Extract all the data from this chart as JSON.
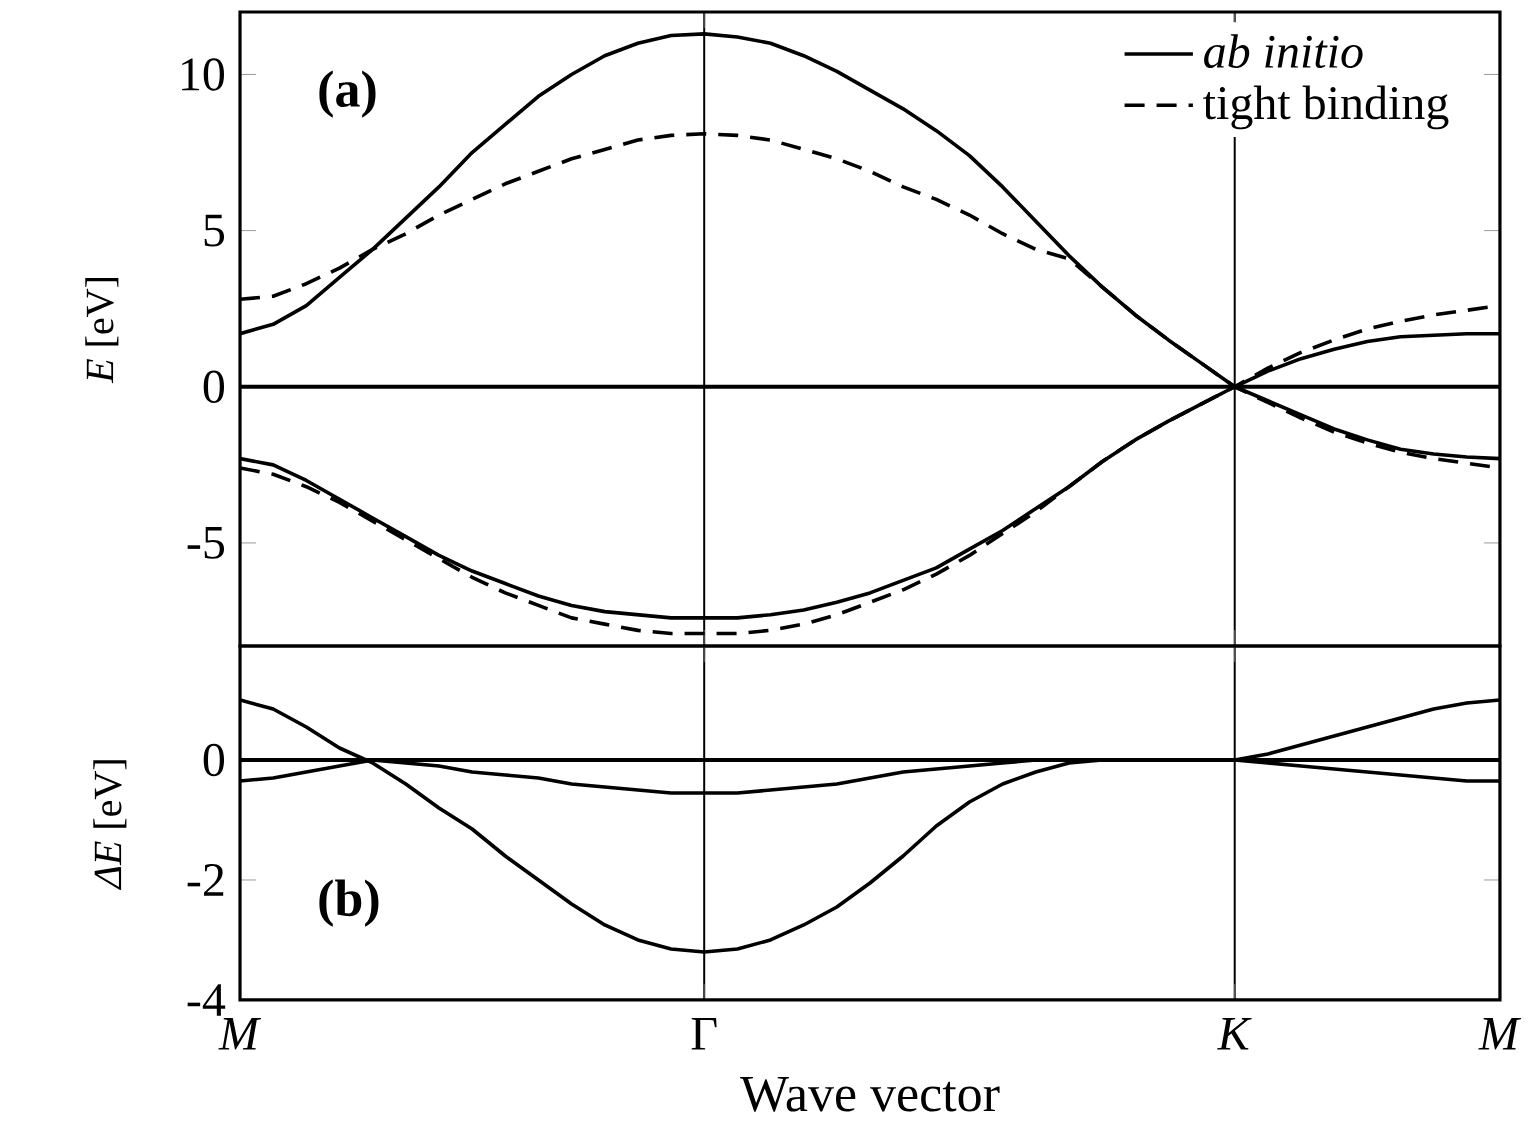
{
  "chart_data": [
    {
      "type": "line",
      "ylabel": "*E*  [eV]",
      "annotations": [
        "(a)"
      ],
      "ylim": [
        -8.3,
        12
      ],
      "categories": [
        null,
        null,
        null,
        null,
        null,
        null,
        null,
        null,
        null,
        null,
        null,
        null,
        null,
        null,
        null,
        null,
        null,
        null,
        null,
        null,
        null,
        null,
        null,
        null,
        null,
        null,
        null,
        null,
        null,
        null,
        null,
        null,
        null,
        null,
        null,
        null,
        null,
        null,
        null
      ],
      "yticks": [
        -5,
        0,
        5,
        10
      ],
      "tick_labels": "y",
      "grid": "x",
      "legend": "top right",
      "ref_lines": [
        {
          "axis": "y",
          "value": 0
        }
      ],
      "series": [
        {
          "name": "*ab initio*",
          "color": "#000000",
          "line_style": "solid",
          "values": [
            1.7,
            2.0,
            2.6,
            3.5,
            4.4,
            5.4,
            6.4,
            7.5,
            8.4,
            9.3,
            10.0,
            10.6,
            11.0,
            11.25,
            11.3,
            11.2,
            11.0,
            10.6,
            10.1,
            9.5,
            8.9,
            8.2,
            7.4,
            6.4,
            5.3,
            4.2,
            3.2,
            2.3,
            1.5,
            0.75,
            0,
            0.5,
            0.9,
            1.2,
            1.45,
            1.6,
            1.65,
            1.7,
            1.7
          ]
        },
        {
          "name": "tight binding",
          "color": "#000000",
          "line_style": "dashed",
          "values": [
            2.8,
            2.9,
            3.3,
            3.8,
            4.4,
            4.9,
            5.5,
            6.0,
            6.5,
            6.9,
            7.3,
            7.6,
            7.9,
            8.05,
            8.1,
            8.05,
            7.9,
            7.6,
            7.3,
            6.9,
            6.4,
            6.0,
            5.5,
            4.9,
            4.4,
            4.1,
            3.2,
            2.3,
            1.5,
            0.75,
            0,
            0.6,
            1.1,
            1.5,
            1.85,
            2.1,
            2.3,
            2.45,
            2.6
          ]
        },
        {
          "color": "#000000",
          "line_style": "solid",
          "values": [
            -2.3,
            -2.5,
            -3.0,
            -3.6,
            -4.2,
            -4.8,
            -5.4,
            -5.9,
            -6.3,
            -6.7,
            -7.0,
            -7.2,
            -7.3,
            -7.4,
            -7.4,
            -7.4,
            -7.3,
            -7.15,
            -6.9,
            -6.6,
            -6.2,
            -5.8,
            -5.2,
            -4.6,
            -3.9,
            -3.2,
            -2.4,
            -1.7,
            -1.1,
            -0.55,
            0,
            -0.45,
            -0.9,
            -1.35,
            -1.7,
            -2.0,
            -2.15,
            -2.25,
            -2.3
          ]
        },
        {
          "color": "#000000",
          "line_style": "dashed",
          "values": [
            -2.6,
            -2.8,
            -3.2,
            -3.7,
            -4.3,
            -4.9,
            -5.5,
            -6.1,
            -6.6,
            -7.0,
            -7.4,
            -7.6,
            -7.8,
            -7.9,
            -7.9,
            -7.9,
            -7.8,
            -7.6,
            -7.3,
            -6.9,
            -6.5,
            -6.0,
            -5.4,
            -4.7,
            -4.0,
            -3.2,
            -2.4,
            -1.7,
            -1.1,
            -0.55,
            0,
            -0.5,
            -1.0,
            -1.45,
            -1.8,
            -2.1,
            -2.3,
            -2.45,
            -2.6
          ]
        }
      ]
    },
    {
      "type": "line",
      "ylabel": "*ΔE*  [eV]",
      "xlabel": "Wave vector",
      "annotations": [
        "(b)"
      ],
      "ylim": [
        -4,
        1.9
      ],
      "categories": [
        "*M*",
        null,
        null,
        null,
        null,
        null,
        null,
        null,
        null,
        null,
        null,
        null,
        null,
        null,
        "Γ",
        null,
        null,
        null,
        null,
        null,
        null,
        null,
        null,
        null,
        null,
        null,
        null,
        null,
        null,
        null,
        "*K*",
        null,
        null,
        null,
        null,
        null,
        null,
        null,
        "*M*"
      ],
      "yticks": [
        -4,
        -2,
        0
      ],
      "grid": "x",
      "ref_lines": [
        {
          "axis": "y",
          "value": 0
        }
      ],
      "series": [
        {
          "color": "#000000",
          "line_style": "solid",
          "values": [
            1.0,
            0.85,
            0.55,
            0.2,
            -0.05,
            -0.4,
            -0.8,
            -1.15,
            -1.6,
            -2.0,
            -2.4,
            -2.75,
            -3.0,
            -3.15,
            -3.2,
            -3.15,
            -3.0,
            -2.75,
            -2.45,
            -2.05,
            -1.6,
            -1.1,
            -0.7,
            -0.4,
            -0.2,
            -0.05,
            0,
            0,
            0,
            0,
            0,
            0.1,
            0.25,
            0.4,
            0.55,
            0.7,
            0.85,
            0.95,
            1.0
          ]
        },
        {
          "color": "#000000",
          "line_style": "solid",
          "values": [
            -0.35,
            -0.3,
            -0.2,
            -0.1,
            0,
            -0.05,
            -0.1,
            -0.2,
            -0.25,
            -0.3,
            -0.4,
            -0.45,
            -0.5,
            -0.55,
            -0.55,
            -0.55,
            -0.5,
            -0.45,
            -0.4,
            -0.3,
            -0.2,
            -0.15,
            -0.1,
            -0.05,
            0,
            0,
            0,
            0,
            0,
            0,
            0,
            -0.05,
            -0.1,
            -0.15,
            -0.2,
            -0.25,
            -0.3,
            -0.35,
            -0.35
          ]
        }
      ]
    }
  ]
}
